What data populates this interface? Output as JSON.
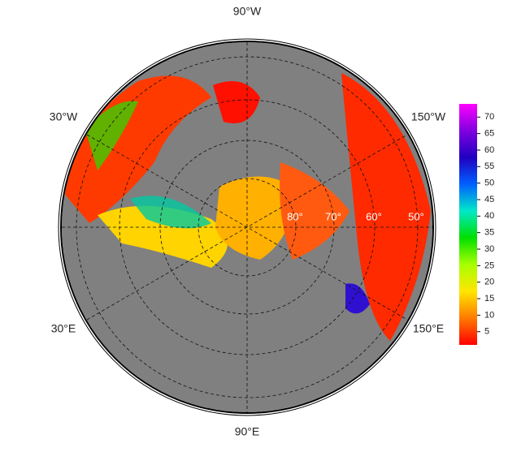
{
  "map": {
    "meridian_labels": [
      "90°W",
      "30°W",
      "150°W",
      "30°E",
      "150°E",
      "90°E"
    ],
    "latitude_labels": [
      "80°",
      "70°",
      "60°",
      "50°"
    ],
    "colorbar": {
      "lim": [
        1,
        74
      ],
      "ticks": [
        5,
        10,
        15,
        20,
        25,
        30,
        35,
        40,
        45,
        50,
        55,
        60,
        65,
        70
      ],
      "colors": [
        "#ff0000",
        "#ff7a00",
        "#ffe600",
        "#a8ff00",
        "#00e000",
        "#00e8c8",
        "#0060ff",
        "#2000c0",
        "#8000e0",
        "#ff00ff"
      ]
    }
  }
}
